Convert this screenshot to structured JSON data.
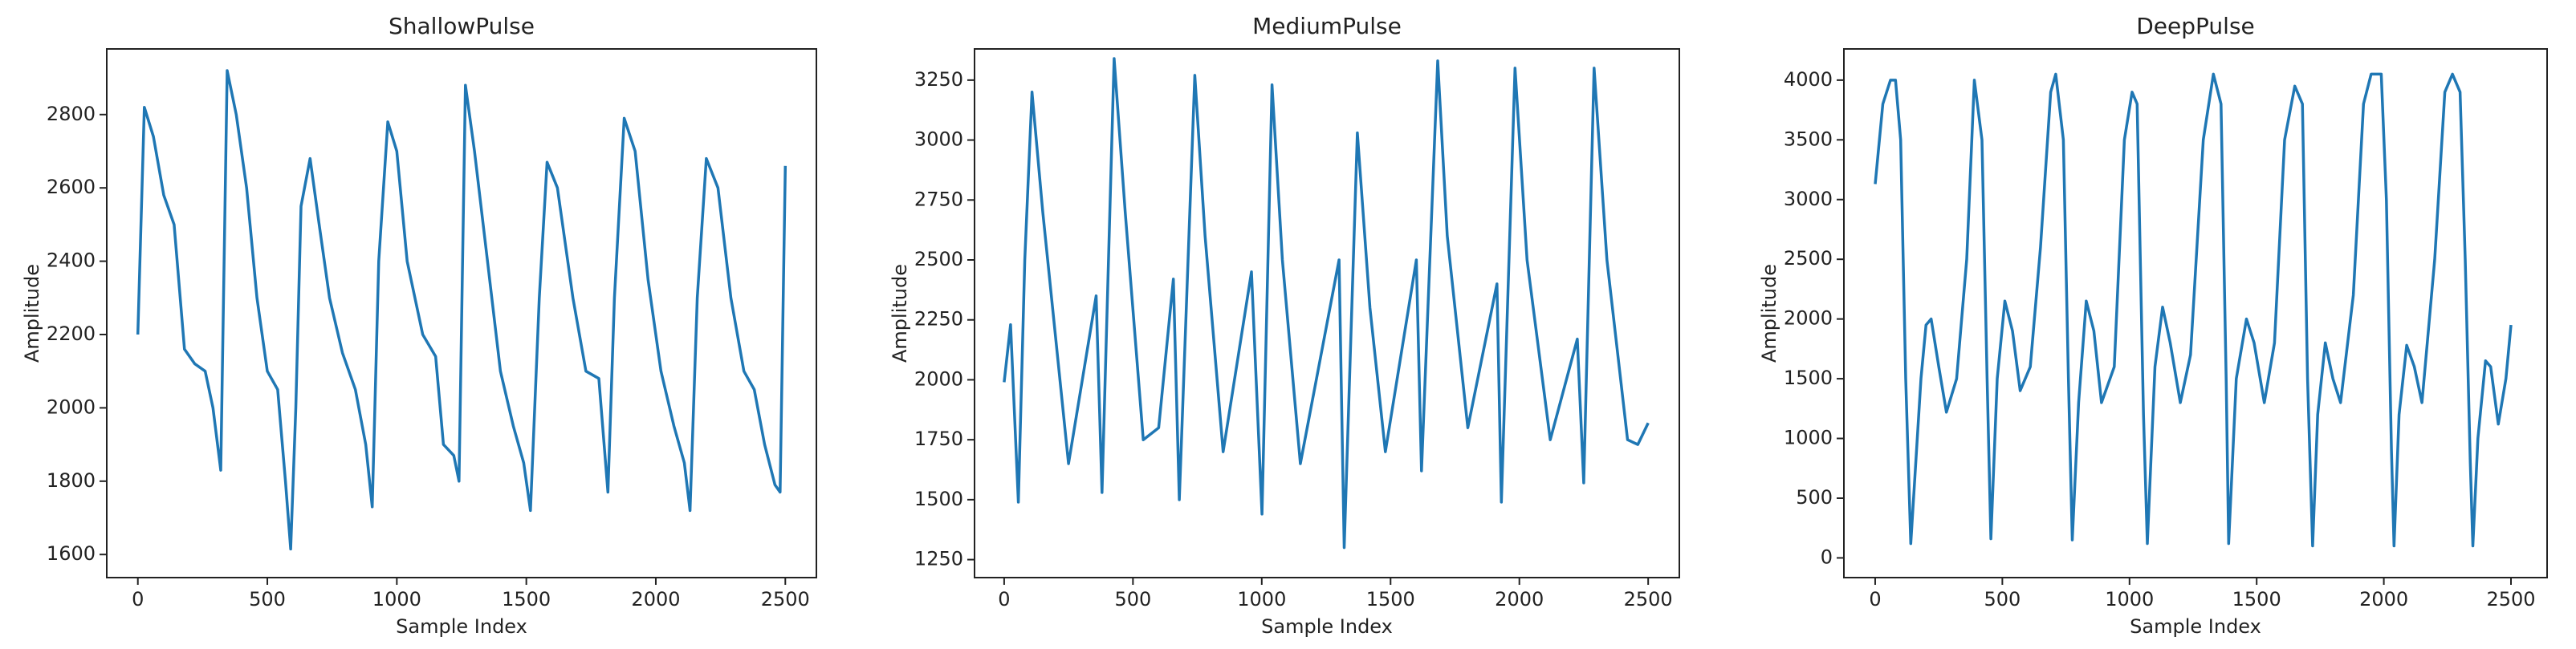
{
  "chart_data": [
    {
      "type": "line",
      "title": "ShallowPulse",
      "xlabel": "Sample Index",
      "ylabel": "Amplitude",
      "x": [
        0,
        25,
        60,
        100,
        140,
        180,
        220,
        260,
        290,
        320,
        345,
        380,
        420,
        460,
        500,
        540,
        570,
        590,
        610,
        630,
        665,
        700,
        740,
        790,
        840,
        880,
        905,
        930,
        965,
        1000,
        1040,
        1100,
        1150,
        1180,
        1220,
        1240,
        1265,
        1300,
        1350,
        1400,
        1450,
        1490,
        1516,
        1550,
        1580,
        1620,
        1680,
        1730,
        1780,
        1815,
        1840,
        1878,
        1920,
        1970,
        2020,
        2070,
        2110,
        2132,
        2160,
        2195,
        2240,
        2290,
        2340,
        2380,
        2420,
        2460,
        2480,
        2500
      ],
      "series": [
        {
          "name": "ShallowPulse",
          "color": "#1f77b4",
          "values": [
            2200,
            2820,
            2740,
            2580,
            2500,
            2160,
            2120,
            2100,
            2000,
            1830,
            2920,
            2800,
            2600,
            2300,
            2100,
            2050,
            1800,
            1615,
            2000,
            2550,
            2680,
            2500,
            2300,
            2150,
            2050,
            1900,
            1730,
            2400,
            2780,
            2700,
            2400,
            2200,
            2140,
            1900,
            1870,
            1800,
            2880,
            2700,
            2400,
            2100,
            1950,
            1850,
            1720,
            2300,
            2670,
            2600,
            2300,
            2100,
            2080,
            1770,
            2300,
            2790,
            2700,
            2350,
            2100,
            1950,
            1850,
            1720,
            2300,
            2680,
            2600,
            2300,
            2100,
            2050,
            1900,
            1790,
            1770,
            2660
          ]
        }
      ],
      "xlim": [
        -120,
        2620
      ],
      "ylim": [
        1537,
        2979
      ],
      "xticks": [
        0,
        500,
        1000,
        1500,
        2000,
        2500
      ],
      "yticks": [
        1600,
        1800,
        2000,
        2200,
        2400,
        2600,
        2800
      ]
    },
    {
      "type": "line",
      "title": "MediumPulse",
      "xlabel": "Sample Index",
      "ylabel": "Amplitude",
      "x": [
        0,
        25,
        55,
        80,
        108,
        150,
        250,
        357,
        380,
        427,
        470,
        540,
        600,
        657,
        680,
        740,
        780,
        850,
        960,
        1001,
        1040,
        1080,
        1150,
        1300,
        1320,
        1371,
        1420,
        1480,
        1600,
        1620,
        1683,
        1720,
        1800,
        1913,
        1930,
        1983,
        2030,
        2120,
        2225,
        2250,
        2290,
        2340,
        2420,
        2460,
        2500
      ],
      "series": [
        {
          "name": "MediumPulse",
          "color": "#1f77b4",
          "values": [
            1990,
            2230,
            1490,
            2500,
            3200,
            2700,
            1650,
            2350,
            1530,
            3340,
            2700,
            1750,
            1800,
            2420,
            1500,
            3270,
            2600,
            1700,
            2450,
            1440,
            3230,
            2500,
            1650,
            2500,
            1300,
            3030,
            2300,
            1700,
            2500,
            1620,
            3330,
            2600,
            1800,
            2400,
            1490,
            3300,
            2500,
            1750,
            2170,
            1570,
            3300,
            2500,
            1750,
            1730,
            1820
          ]
        }
      ],
      "xlim": [
        -115,
        2621
      ],
      "ylim": [
        1175,
        3380
      ],
      "xticks": [
        0,
        500,
        1000,
        1500,
        2000,
        2500
      ],
      "yticks": [
        1250,
        1500,
        1750,
        2000,
        2250,
        2500,
        2750,
        3000,
        3250
      ]
    },
    {
      "type": "line",
      "title": "DeepPulse",
      "xlabel": "Sample Index",
      "ylabel": "Amplitude",
      "x": [
        0,
        30,
        60,
        80,
        100,
        120,
        140,
        180,
        200,
        220,
        250,
        280,
        320,
        360,
        390,
        420,
        440,
        455,
        480,
        510,
        540,
        570,
        610,
        650,
        690,
        710,
        740,
        760,
        775,
        800,
        830,
        860,
        890,
        940,
        980,
        1010,
        1030,
        1055,
        1070,
        1100,
        1130,
        1160,
        1200,
        1240,
        1290,
        1330,
        1360,
        1380,
        1390,
        1420,
        1460,
        1490,
        1530,
        1570,
        1610,
        1650,
        1680,
        1700,
        1720,
        1740,
        1770,
        1800,
        1830,
        1880,
        1920,
        1950,
        1990,
        2010,
        2030,
        2040,
        2060,
        2090,
        2120,
        2150,
        2200,
        2240,
        2270,
        2300,
        2320,
        2340,
        2350,
        2370,
        2400,
        2420,
        2450,
        2480,
        2500
      ],
      "series": [
        {
          "name": "DeepPulse",
          "color": "#1f77b4",
          "values": [
            3130,
            3800,
            4000,
            4000,
            3500,
            1500,
            120,
            1500,
            1950,
            2000,
            1600,
            1220,
            1500,
            2500,
            4000,
            3500,
            1500,
            160,
            1500,
            2150,
            1900,
            1400,
            1600,
            2600,
            3900,
            4050,
            3500,
            1500,
            150,
            1300,
            2150,
            1900,
            1300,
            1600,
            3500,
            3900,
            3800,
            1200,
            120,
            1600,
            2100,
            1800,
            1300,
            1700,
            3500,
            4050,
            3800,
            1500,
            120,
            1500,
            2000,
            1800,
            1300,
            1800,
            3500,
            3950,
            3800,
            1500,
            100,
            1200,
            1800,
            1500,
            1300,
            2200,
            3800,
            4050,
            4050,
            3000,
            900,
            100,
            1200,
            1780,
            1600,
            1300,
            2500,
            3900,
            4050,
            3900,
            2500,
            800,
            100,
            1000,
            1650,
            1600,
            1120,
            1500,
            1950
          ]
        }
      ],
      "xlim": [
        -123,
        2642
      ],
      "ylim": [
        -165,
        4261
      ],
      "xticks": [
        0,
        500,
        1000,
        1500,
        2000,
        2500
      ],
      "yticks": [
        0,
        500,
        1000,
        1500,
        2000,
        2500,
        3000,
        3500,
        4000
      ]
    }
  ]
}
